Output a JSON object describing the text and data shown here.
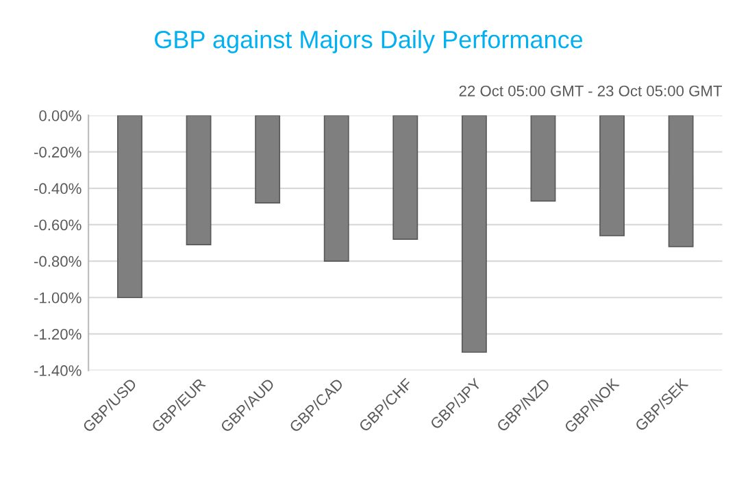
{
  "chart_data": {
    "type": "bar",
    "title": "GBP against Majors Daily Performance",
    "subtitle": "22 Oct 05:00 GMT - 23 Oct 05:00 GMT",
    "categories": [
      "GBP/USD",
      "GBP/EUR",
      "GBP/AUD",
      "GBP/CAD",
      "GBP/CHF",
      "GBP/JPY",
      "GBP/NZD",
      "GBP/NOK",
      "GBP/SEK"
    ],
    "values": [
      -1.0,
      -0.71,
      -0.48,
      -0.8,
      -0.68,
      -1.3,
      -0.47,
      -0.66,
      -0.72
    ],
    "color": "#7f7f7f",
    "ylim": [
      -1.4,
      0
    ],
    "yticks": [
      {
        "value": -1.4,
        "label": "-1.40%"
      },
      {
        "value": -1.2,
        "label": "-1.20%"
      },
      {
        "value": -1.0,
        "label": "-1.00%"
      },
      {
        "value": -0.8,
        "label": "-0.80%"
      },
      {
        "value": -0.6,
        "label": "-0.60%"
      },
      {
        "value": -0.4,
        "label": "-0.40%"
      },
      {
        "value": -0.2,
        "label": "-0.20%"
      },
      {
        "value": 0,
        "label": "0.00%"
      }
    ],
    "grid": "y"
  }
}
